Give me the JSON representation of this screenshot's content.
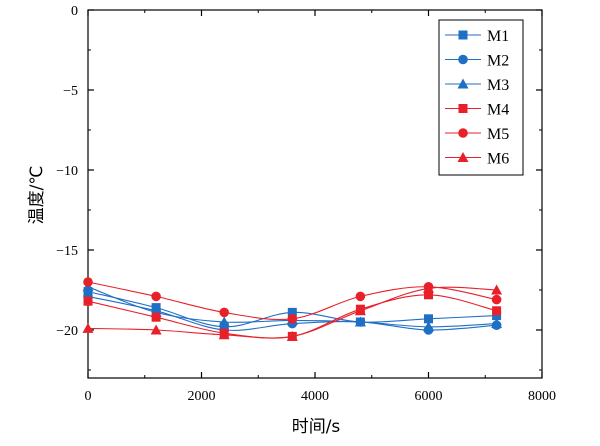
{
  "chart_data": {
    "type": "line",
    "xlabel": "时间/s",
    "ylabel": "温度/℃",
    "xlim": [
      0,
      8000
    ],
    "ylim": [
      -23,
      0
    ],
    "xticks": [
      0,
      2000,
      4000,
      6000,
      8000
    ],
    "yticks": [
      0,
      -5,
      -10,
      -15,
      -20
    ],
    "grid": false,
    "legend_position": "top-right",
    "x": [
      0,
      1200,
      2400,
      3600,
      4800,
      6000,
      7200
    ],
    "series": [
      {
        "name": "M1",
        "color": "#1f6fc5",
        "marker": "square",
        "values": [
          -17.6,
          -18.6,
          -19.8,
          -18.9,
          -19.5,
          -19.3,
          -19.1
        ]
      },
      {
        "name": "M2",
        "color": "#1f6fc5",
        "marker": "circle",
        "values": [
          -17.9,
          -18.8,
          -20.0,
          -19.6,
          -19.5,
          -20.0,
          -19.7
        ]
      },
      {
        "name": "M3",
        "color": "#1f6fc5",
        "marker": "triangle",
        "values": [
          -17.3,
          -18.9,
          -19.5,
          -19.4,
          -19.5,
          -19.8,
          -19.6
        ]
      },
      {
        "name": "M4",
        "color": "#e8202a",
        "marker": "square",
        "values": [
          -18.2,
          -19.2,
          -20.2,
          -20.4,
          -18.7,
          -17.8,
          -18.8
        ]
      },
      {
        "name": "M5",
        "color": "#e8202a",
        "marker": "circle",
        "values": [
          -17.0,
          -17.9,
          -18.9,
          -19.3,
          -17.9,
          -17.3,
          -18.1
        ]
      },
      {
        "name": "M6",
        "color": "#e8202a",
        "marker": "triangle",
        "values": [
          -19.9,
          -20.0,
          -20.3,
          -20.4,
          -18.8,
          -17.4,
          -17.5
        ]
      }
    ]
  }
}
